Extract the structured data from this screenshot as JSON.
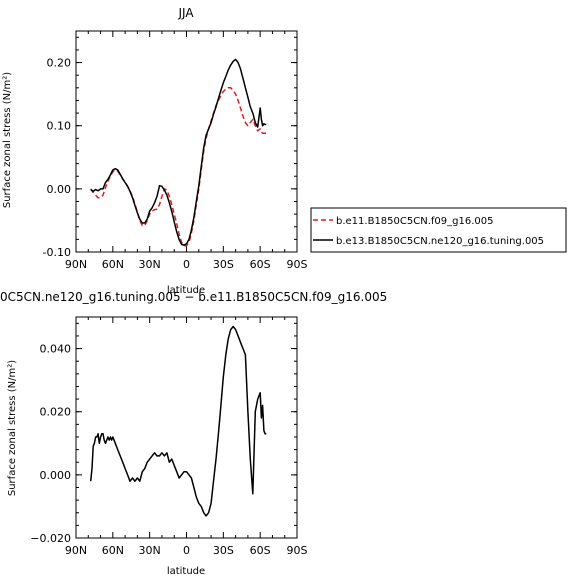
{
  "chart_data": [
    {
      "type": "line",
      "title": "JJA",
      "xlabel": "latitude",
      "ylabel": "Surface zonal stress (N/m²)",
      "x_ticks": [
        -90,
        -60,
        -30,
        0,
        30,
        60,
        90
      ],
      "x_tick_labels": [
        "90N",
        "60N",
        "30N",
        "0",
        "30S",
        "60S",
        "90S"
      ],
      "xlim": [
        -90,
        90
      ],
      "ylim": [
        -0.1,
        0.25
      ],
      "y_ticks": [
        -0.1,
        0.0,
        0.1,
        0.2
      ],
      "y_tick_labels": [
        "-0.10",
        "0.00",
        "0.10",
        "0.20"
      ],
      "legend_position": "right",
      "series": [
        {
          "name": "b.e11.B1850C5CN.f09_g16.005",
          "color": "#d62020",
          "dash": "dashed",
          "x": [
            -78,
            -76,
            -74,
            -72,
            -70,
            -68,
            -66,
            -64,
            -62,
            -60,
            -58,
            -56,
            -54,
            -52,
            -50,
            -48,
            -46,
            -44,
            -42,
            -40,
            -38,
            -36,
            -34,
            -32,
            -30,
            -28,
            -26,
            -24,
            -22,
            -20,
            -18,
            -16,
            -14,
            -12,
            -10,
            -8,
            -6,
            -4,
            -2,
            0,
            2,
            4,
            6,
            8,
            10,
            12,
            14,
            16,
            18,
            20,
            22,
            24,
            26,
            28,
            30,
            32,
            34,
            36,
            38,
            40,
            42,
            44,
            46,
            48,
            50,
            52,
            54,
            56,
            58,
            60,
            61,
            62,
            63,
            64,
            65
          ],
          "y": [
            0.0,
            -0.006,
            -0.01,
            -0.014,
            -0.014,
            -0.01,
            0.002,
            0.012,
            0.02,
            0.027,
            0.03,
            0.028,
            0.022,
            0.016,
            0.01,
            0.004,
            -0.003,
            -0.012,
            -0.024,
            -0.037,
            -0.05,
            -0.058,
            -0.058,
            -0.05,
            -0.04,
            -0.035,
            -0.033,
            -0.032,
            -0.025,
            -0.012,
            0.0,
            -0.002,
            -0.012,
            -0.025,
            -0.04,
            -0.055,
            -0.072,
            -0.085,
            -0.09,
            -0.09,
            -0.085,
            -0.07,
            -0.05,
            -0.025,
            0.0,
            0.03,
            0.06,
            0.08,
            0.095,
            0.108,
            0.12,
            0.132,
            0.14,
            0.148,
            0.154,
            0.158,
            0.16,
            0.16,
            0.156,
            0.15,
            0.14,
            0.128,
            0.115,
            0.105,
            0.1,
            0.105,
            0.11,
            0.1,
            0.092,
            0.095,
            0.09,
            0.088,
            0.088,
            0.088,
            0.088
          ]
        },
        {
          "name": "b.e13.B1850C5CN.ne120_g16.tuning.005",
          "color": "#000000",
          "dash": "solid",
          "x": [
            -78,
            -76,
            -74,
            -72,
            -70,
            -68,
            -66,
            -64,
            -62,
            -60,
            -58,
            -56,
            -54,
            -52,
            -50,
            -48,
            -46,
            -44,
            -42,
            -40,
            -38,
            -36,
            -34,
            -32,
            -30,
            -28,
            -26,
            -24,
            -22,
            -20,
            -18,
            -16,
            -14,
            -12,
            -10,
            -8,
            -6,
            -4,
            -2,
            0,
            2,
            4,
            6,
            8,
            10,
            12,
            14,
            16,
            18,
            20,
            22,
            24,
            26,
            28,
            30,
            32,
            34,
            36,
            38,
            40,
            42,
            44,
            46,
            48,
            50,
            52,
            54,
            56,
            58,
            60,
            61,
            62,
            63,
            64,
            65
          ],
          "y": [
            -0.001,
            -0.004,
            -0.001,
            -0.003,
            0.0,
            0.0,
            0.01,
            0.015,
            0.022,
            0.03,
            0.032,
            0.03,
            0.023,
            0.016,
            0.01,
            0.004,
            -0.004,
            -0.014,
            -0.026,
            -0.038,
            -0.048,
            -0.054,
            -0.054,
            -0.048,
            -0.035,
            -0.03,
            -0.022,
            -0.012,
            0.005,
            0.004,
            -0.002,
            -0.01,
            -0.022,
            -0.036,
            -0.052,
            -0.068,
            -0.08,
            -0.088,
            -0.089,
            -0.087,
            -0.08,
            -0.065,
            -0.045,
            -0.02,
            0.005,
            0.035,
            0.065,
            0.085,
            0.095,
            0.105,
            0.118,
            0.13,
            0.143,
            0.156,
            0.168,
            0.178,
            0.188,
            0.196,
            0.202,
            0.205,
            0.2,
            0.19,
            0.175,
            0.16,
            0.145,
            0.13,
            0.12,
            0.105,
            0.098,
            0.128,
            0.11,
            0.1,
            0.103,
            0.102,
            0.102
          ]
        }
      ]
    },
    {
      "type": "line",
      "title": "0C5CN.ne120_g16.tuning.005 − b.e11.B1850C5CN.f09_g16.005",
      "xlabel": "latitude",
      "ylabel": "Surface zonal stress (N/m²)",
      "x_ticks": [
        -90,
        -60,
        -30,
        0,
        30,
        60,
        90
      ],
      "x_tick_labels": [
        "90N",
        "60N",
        "30N",
        "0",
        "30S",
        "60S",
        "90S"
      ],
      "xlim": [
        -90,
        90
      ],
      "ylim": [
        -0.02,
        0.05
      ],
      "y_ticks": [
        -0.02,
        0.0,
        0.02,
        0.04
      ],
      "y_tick_labels": [
        "−0.020",
        "0.000",
        "0.020",
        "0.040"
      ],
      "series": [
        {
          "color": "#000000",
          "x": [
            -78,
            -77,
            -76,
            -75,
            -74,
            -73,
            -72,
            -71,
            -70,
            -69,
            -68,
            -67,
            -66,
            -65,
            -64,
            -63,
            -62,
            -61,
            -60,
            -58,
            -56,
            -54,
            -52,
            -50,
            -48,
            -46,
            -44,
            -42,
            -40,
            -38,
            -36,
            -34,
            -32,
            -30,
            -28,
            -26,
            -24,
            -22,
            -20,
            -18,
            -16,
            -14,
            -12,
            -10,
            -8,
            -6,
            -4,
            -2,
            0,
            2,
            4,
            6,
            8,
            10,
            12,
            14,
            16,
            18,
            20,
            22,
            24,
            26,
            28,
            30,
            32,
            34,
            36,
            38,
            40,
            42,
            44,
            46,
            48,
            50,
            52,
            54,
            56,
            58,
            60,
            61,
            62,
            63,
            64,
            65
          ],
          "y": [
            -0.002,
            0.002,
            0.009,
            0.01,
            0.012,
            0.012,
            0.013,
            0.01,
            0.012,
            0.013,
            0.013,
            0.011,
            0.01,
            0.011,
            0.012,
            0.011,
            0.012,
            0.011,
            0.012,
            0.01,
            0.008,
            0.006,
            0.004,
            0.002,
            0.0,
            -0.002,
            -0.001,
            -0.002,
            -0.001,
            -0.002,
            0.001,
            0.002,
            0.004,
            0.005,
            0.006,
            0.007,
            0.006,
            0.006,
            0.007,
            0.006,
            0.007,
            0.004,
            0.005,
            0.003,
            0.001,
            -0.001,
            0.0,
            0.001,
            0.001,
            0.0,
            -0.001,
            -0.004,
            -0.007,
            -0.009,
            -0.01,
            -0.012,
            -0.013,
            -0.012,
            -0.009,
            -0.002,
            0.005,
            0.013,
            0.022,
            0.031,
            0.038,
            0.043,
            0.046,
            0.047,
            0.046,
            0.044,
            0.042,
            0.04,
            0.038,
            0.02,
            0.005,
            -0.006,
            0.02,
            0.024,
            0.026,
            0.018,
            0.022,
            0.014,
            0.013,
            0.013
          ]
        }
      ]
    }
  ]
}
